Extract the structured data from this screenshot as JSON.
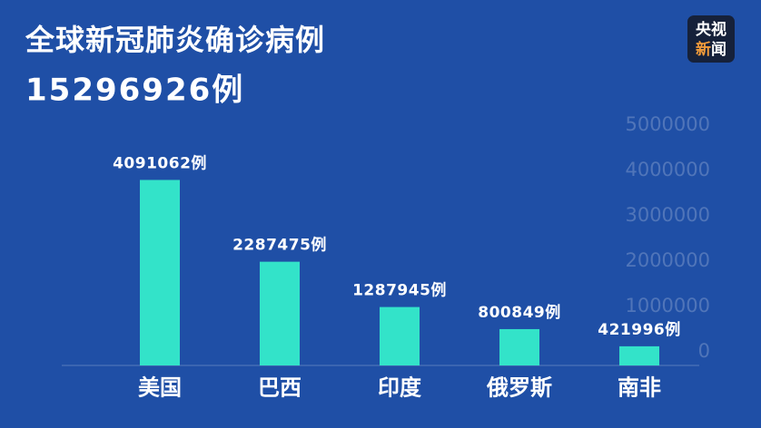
{
  "chart_data": {
    "type": "bar",
    "title": "全球新冠肺炎确诊病例",
    "subtitle": "15296926例",
    "categories": [
      "美国",
      "巴西",
      "印度",
      "俄罗斯",
      "南非"
    ],
    "values": [
      4091062,
      2287475,
      1287945,
      800849,
      421996
    ],
    "value_labels": [
      "4091062例",
      "2287475例",
      "1287945例",
      "800849例",
      "421996例"
    ],
    "color": "#33e3c9",
    "ylim": [
      0,
      5000000
    ],
    "yticks": [
      0,
      1000000,
      2000000,
      3000000,
      4000000,
      5000000
    ],
    "y_axis_side": "right",
    "grid": false
  },
  "logo": [
    "央视",
    "新",
    "闻"
  ]
}
